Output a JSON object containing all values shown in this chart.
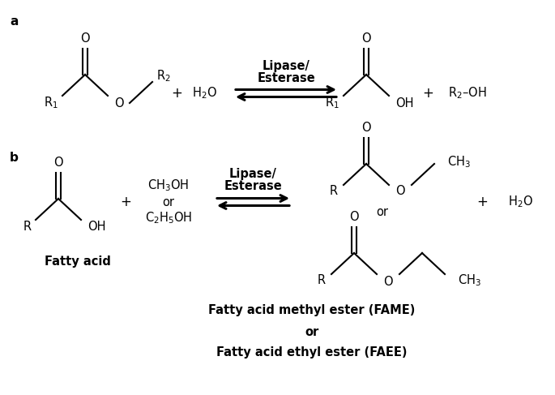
{
  "bg_color": "#ffffff",
  "fig_width": 6.85,
  "fig_height": 4.87,
  "dpi": 100,
  "label_a": "a",
  "label_b": "b",
  "lipase_esterase": "Lipase/\nEsterase",
  "fame_label_line1": "Fatty acid methyl ester (FAME)",
  "fame_label_line2": "or",
  "fame_label_line3": "Fatty acid ethyl ester (FAEE)",
  "fatty_acid_label": "Fatty acid"
}
